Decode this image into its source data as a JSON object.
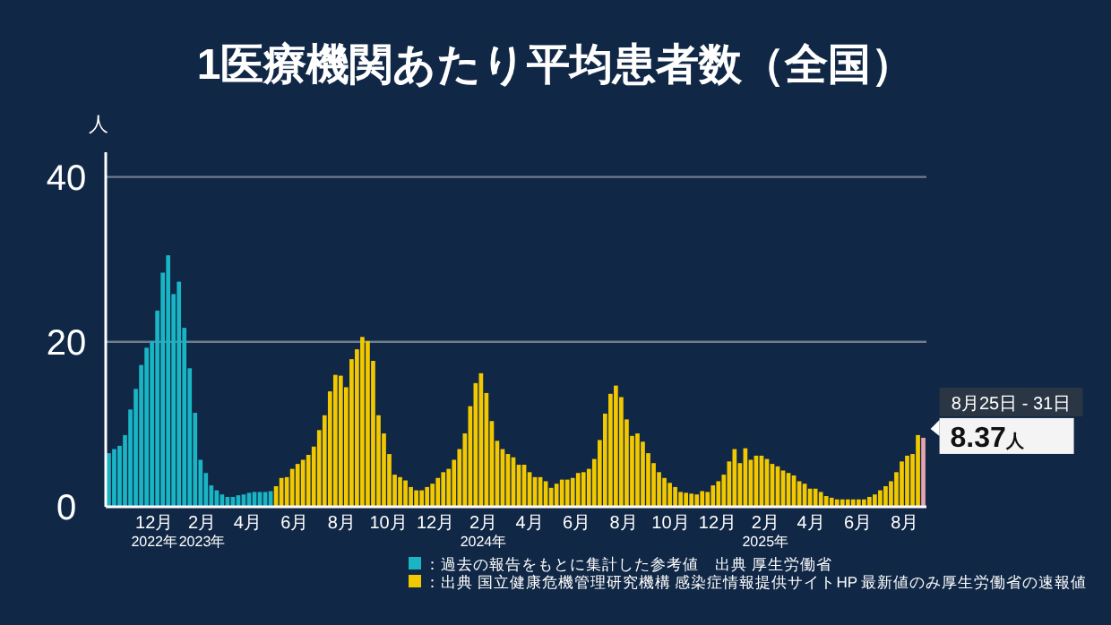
{
  "chart_data": {
    "type": "bar",
    "title": "1医療機関あたり平均患者数（全国）",
    "ylabel": "人",
    "xlim": [
      "2022-09-29",
      "2025-08-29"
    ],
    "ylim": [
      0,
      43
    ],
    "yticks": [
      0,
      20,
      40
    ],
    "grid": "y",
    "legend": "bottom",
    "xticks": [
      {
        "value": "2022-12-01",
        "label": "12月\n2022年"
      },
      {
        "value": "2023-02-01",
        "label": "2月\n2023年"
      },
      {
        "value": "2023-04-01",
        "label": "4月"
      },
      {
        "value": "2023-06-01",
        "label": "6月"
      },
      {
        "value": "2023-08-01",
        "label": "8月"
      },
      {
        "value": "2023-10-01",
        "label": "10月"
      },
      {
        "value": "2023-12-01",
        "label": "12月"
      },
      {
        "value": "2024-02-01",
        "label": "2月\n2024年"
      },
      {
        "value": "2024-04-01",
        "label": "4月"
      },
      {
        "value": "2024-06-01",
        "label": "6月"
      },
      {
        "value": "2024-08-01",
        "label": "8月"
      },
      {
        "value": "2024-10-01",
        "label": "10月"
      },
      {
        "value": "2024-12-01",
        "label": "12月"
      },
      {
        "value": "2025-02-01",
        "label": "2月\n2025年"
      },
      {
        "value": "2025-04-01",
        "label": "4月"
      },
      {
        "value": "2025-06-01",
        "label": "6月"
      },
      {
        "value": "2025-08-01",
        "label": "8月"
      }
    ],
    "series": [
      {
        "name": "：過去の報告をもとに集計した参考値　出典 厚生労働省",
        "color": "#19b5c4",
        "x": [
          "2022-10-03",
          "2022-10-10",
          "2022-10-17",
          "2022-10-24",
          "2022-10-31",
          "2022-11-07",
          "2022-11-14",
          "2022-11-21",
          "2022-11-28",
          "2022-12-05",
          "2022-12-12",
          "2022-12-19",
          "2022-12-26",
          "2023-01-02",
          "2023-01-09",
          "2023-01-16",
          "2023-01-23",
          "2023-01-30",
          "2023-02-06",
          "2023-02-13",
          "2023-02-20",
          "2023-02-27",
          "2023-03-06",
          "2023-03-13",
          "2023-03-20",
          "2023-03-27",
          "2023-04-03",
          "2023-04-10",
          "2023-04-17",
          "2023-04-24",
          "2023-05-01"
        ],
        "values": [
          6.5,
          7.0,
          7.4,
          8.7,
          11.8,
          14.3,
          17.2,
          19.3,
          20.1,
          23.8,
          28.4,
          30.5,
          25.8,
          27.3,
          21.7,
          16.8,
          11.4,
          5.7,
          4.1,
          2.6,
          2.0,
          1.5,
          1.2,
          1.2,
          1.4,
          1.5,
          1.7,
          1.8,
          1.8,
          1.8,
          1.9
        ]
      },
      {
        "name": "：出典 国立健康危機管理研究機構 感染症情報提供サイトHP 最新値のみ厚生労働省の速報値",
        "color": "#f2c800",
        "x": [
          "2023-05-08",
          "2023-05-15",
          "2023-05-22",
          "2023-05-29",
          "2023-06-05",
          "2023-06-12",
          "2023-06-19",
          "2023-06-26",
          "2023-07-03",
          "2023-07-10",
          "2023-07-17",
          "2023-07-24",
          "2023-07-31",
          "2023-08-07",
          "2023-08-14",
          "2023-08-21",
          "2023-08-28",
          "2023-09-04",
          "2023-09-11",
          "2023-09-18",
          "2023-09-25",
          "2023-10-02",
          "2023-10-09",
          "2023-10-16",
          "2023-10-23",
          "2023-10-30",
          "2023-11-06",
          "2023-11-13",
          "2023-11-20",
          "2023-11-27",
          "2023-12-04",
          "2023-12-11",
          "2023-12-18",
          "2023-12-25",
          "2024-01-01",
          "2024-01-08",
          "2024-01-15",
          "2024-01-22",
          "2024-01-29",
          "2024-02-05",
          "2024-02-12",
          "2024-02-19",
          "2024-02-26",
          "2024-03-04",
          "2024-03-11",
          "2024-03-18",
          "2024-03-25",
          "2024-04-01",
          "2024-04-08",
          "2024-04-15",
          "2024-04-22",
          "2024-04-29",
          "2024-05-06",
          "2024-05-13",
          "2024-05-20",
          "2024-05-27",
          "2024-06-03",
          "2024-06-10",
          "2024-06-17",
          "2024-06-24",
          "2024-07-01",
          "2024-07-08",
          "2024-07-15",
          "2024-07-22",
          "2024-07-29",
          "2024-08-05",
          "2024-08-12",
          "2024-08-19",
          "2024-08-26",
          "2024-09-02",
          "2024-09-09",
          "2024-09-16",
          "2024-09-23",
          "2024-09-30",
          "2024-10-07",
          "2024-10-14",
          "2024-10-21",
          "2024-10-28",
          "2024-11-04",
          "2024-11-11",
          "2024-11-18",
          "2024-11-25",
          "2024-12-02",
          "2024-12-09",
          "2024-12-16",
          "2024-12-23",
          "2024-12-30",
          "2025-01-06",
          "2025-01-13",
          "2025-01-20",
          "2025-01-27",
          "2025-02-03",
          "2025-02-10",
          "2025-02-17",
          "2025-02-24",
          "2025-03-03",
          "2025-03-10",
          "2025-03-17",
          "2025-03-24",
          "2025-03-31",
          "2025-04-07",
          "2025-04-14",
          "2025-04-21",
          "2025-04-28",
          "2025-05-05",
          "2025-05-12",
          "2025-05-19",
          "2025-05-26",
          "2025-06-02",
          "2025-06-09",
          "2025-06-16",
          "2025-06-23",
          "2025-06-30",
          "2025-07-07",
          "2025-07-14",
          "2025-07-21",
          "2025-07-28",
          "2025-08-04",
          "2025-08-11",
          "2025-08-18"
        ],
        "values": [
          2.5,
          3.5,
          3.6,
          4.6,
          5.2,
          5.7,
          6.3,
          7.3,
          9.3,
          11.1,
          14.0,
          16.0,
          15.9,
          14.5,
          17.9,
          19.1,
          20.6,
          20.1,
          17.7,
          11.1,
          8.9,
          6.4,
          3.9,
          3.6,
          3.2,
          2.4,
          2.0,
          2.0,
          2.4,
          2.8,
          3.5,
          4.2,
          4.6,
          5.7,
          7.0,
          8.9,
          12.2,
          15.0,
          16.2,
          13.8,
          10.4,
          8.0,
          7.0,
          6.4,
          6.0,
          5.1,
          5.1,
          4.2,
          3.6,
          3.6,
          3.1,
          2.3,
          2.8,
          3.3,
          3.3,
          3.5,
          4.1,
          4.2,
          4.6,
          5.8,
          8.1,
          11.3,
          13.7,
          14.7,
          13.3,
          10.6,
          8.6,
          8.9,
          7.9,
          6.5,
          5.3,
          4.2,
          3.5,
          2.9,
          2.4,
          1.8,
          1.7,
          1.6,
          1.5,
          1.9,
          1.8,
          2.6,
          3.1,
          3.9,
          5.5,
          7.0,
          5.3,
          7.1,
          5.7,
          6.2,
          6.2,
          5.8,
          5.2,
          4.9,
          4.4,
          4.1,
          3.8,
          3.1,
          2.8,
          2.2,
          2.2,
          1.8,
          1.3,
          1.1,
          0.9,
          0.9,
          0.9,
          0.9,
          0.9,
          0.9,
          1.2,
          1.5,
          2.0,
          2.5,
          3.1,
          4.2,
          5.5,
          6.2,
          6.4,
          8.7
        ]
      },
      {
        "color": "#e6a3b3",
        "x": [
          "2025-08-25"
        ],
        "values": [
          8.37
        ]
      }
    ],
    "annotations": [
      {
        "text": "8月25日 - 31日",
        "x": "2025-08-25",
        "y": 8.37
      },
      {
        "text": "8.37人",
        "x": "2025-08-25",
        "y": 8.37
      }
    ]
  }
}
